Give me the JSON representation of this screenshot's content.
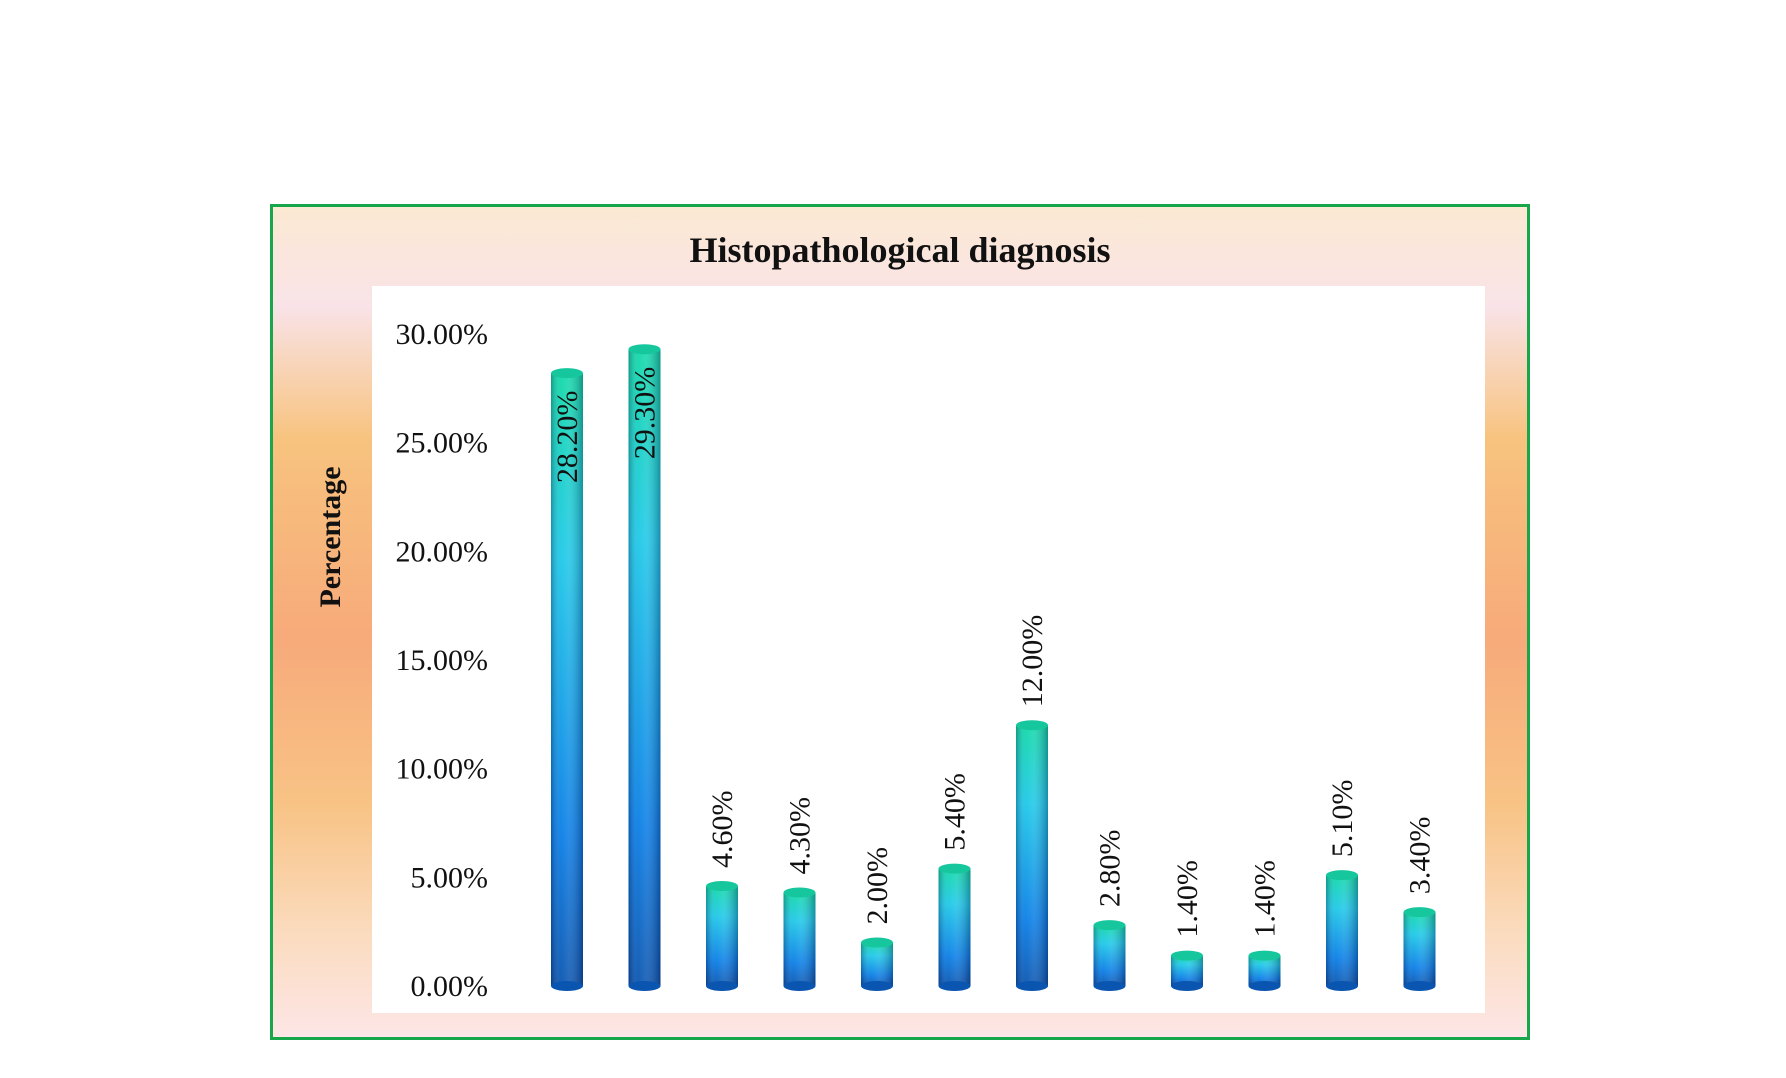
{
  "chart_data": {
    "type": "bar",
    "title": "Histopathological diagnosis",
    "xlabel": "",
    "ylabel": "Percentage",
    "ylim": [
      0,
      30
    ],
    "yticks": [
      "0.00%",
      "5.00%",
      "10.00%",
      "15.00%",
      "20.00%",
      "25.00%",
      "30.00%"
    ],
    "ytick_values": [
      0,
      5,
      10,
      15,
      20,
      25,
      30
    ],
    "values": [
      28.2,
      29.3,
      4.6,
      4.3,
      2.0,
      5.4,
      12.0,
      2.8,
      1.4,
      1.4,
      5.1,
      3.4
    ],
    "data_labels": [
      "28.20%",
      "29.30%",
      "4.60%",
      "4.30%",
      "2.00%",
      "5.40%",
      "12.00%",
      "2.80%",
      "1.40%",
      "1.40%",
      "5.10%",
      "3.40%"
    ],
    "grid": false,
    "legend": "none",
    "colors": {
      "bar_top": "#12d8a8",
      "bar_mid": "#1ec8e8",
      "bar_low": "#0a7ee6",
      "bar_bottom": "#0a55b0",
      "cap": "#16c79e",
      "frame_border": "#17a64a"
    }
  }
}
